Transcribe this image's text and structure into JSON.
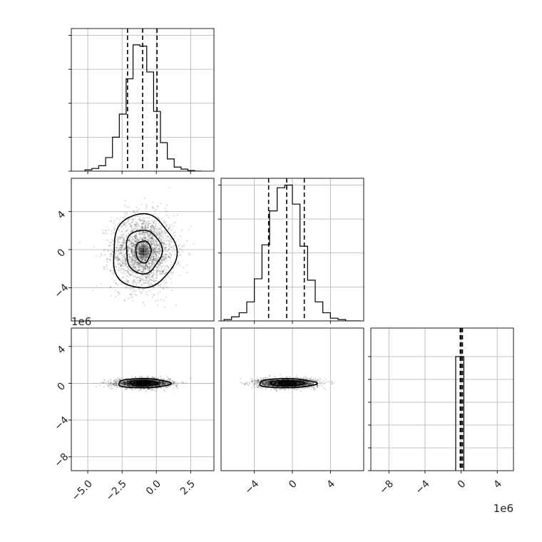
{
  "chart_data": {
    "type": "corner",
    "parameters": 3,
    "panels": [
      {
        "id": "hist-p0",
        "type": "histogram",
        "parameter": 0,
        "x_ticks": [
          "−5.0",
          "−2.5",
          "0.0",
          "2.5"
        ],
        "x_tick_values": [
          -5,
          -2.5,
          0,
          2.5
        ],
        "xlim": [
          -6.2,
          4.2
        ],
        "ylim": [
          0,
          1.05
        ],
        "bin_edges": [
          -5.2,
          -4.7,
          -4.2,
          -3.7,
          -3.2,
          -2.7,
          -2.2,
          -1.7,
          -1.2,
          -0.7,
          -0.2,
          0.3,
          0.8,
          1.3,
          1.8,
          2.3,
          2.8,
          3.3
        ],
        "counts": [
          0.01,
          0.02,
          0.04,
          0.1,
          0.25,
          0.42,
          0.68,
          0.93,
          0.92,
          0.73,
          0.44,
          0.21,
          0.09,
          0.03,
          0.015,
          0.005,
          0.0
        ],
        "quantiles": [
          -2.1,
          -1.0,
          0.05
        ],
        "grid": true
      },
      {
        "id": "scatter-p0-p1",
        "type": "contour",
        "x_param": 0,
        "y_param": 1,
        "xlim": [
          -6.2,
          4.2
        ],
        "ylim": [
          -7.5,
          7.5
        ],
        "y_ticks": [
          "−4",
          "0",
          "4"
        ],
        "y_tick_values": [
          -4,
          0,
          4
        ],
        "y_offset_label": "1e6",
        "center": [
          -0.95,
          -0.2
        ],
        "contour_radii": [
          [
            0.55,
            1.15
          ],
          [
            1.3,
            2.3
          ],
          [
            2.3,
            3.9
          ]
        ],
        "grid": true
      },
      {
        "id": "hist-p1",
        "type": "histogram",
        "parameter": 1,
        "x_ticks": [
          "−4",
          "0",
          "4"
        ],
        "x_tick_values": [
          -4,
          0,
          4
        ],
        "xlim": [
          -7.5,
          7.5
        ],
        "ylim": [
          0,
          1.05
        ],
        "bin_edges": [
          -7.2,
          -6.4,
          -5.6,
          -4.8,
          -4.0,
          -3.2,
          -2.4,
          -1.6,
          -0.8,
          0.0,
          0.8,
          1.6,
          2.4,
          3.2,
          4.0,
          4.8,
          5.6,
          6.4,
          7.2
        ],
        "counts": [
          0.01,
          0.03,
          0.06,
          0.14,
          0.31,
          0.56,
          0.81,
          0.98,
          1.0,
          0.86,
          0.55,
          0.3,
          0.14,
          0.06,
          0.02,
          0.01,
          0.0,
          0.0
        ],
        "quantiles": [
          -2.5,
          -0.6,
          1.25
        ],
        "grid": true
      },
      {
        "id": "scatter-p0-p2",
        "type": "contour",
        "x_param": 0,
        "y_param": 2,
        "xlim": [
          -6.2,
          4.2
        ],
        "ylim": [
          -9.5,
          6.0
        ],
        "y_ticks": [
          "−8",
          "−4",
          "0",
          "4"
        ],
        "y_tick_values": [
          -8,
          -4,
          0,
          4
        ],
        "x_ticks": [
          "−5.0",
          "−2.5",
          "0.0",
          "2.5"
        ],
        "x_tick_values": [
          -5,
          -2.5,
          0,
          2.5
        ],
        "center": [
          -0.95,
          0.0
        ],
        "contour_radii": [
          [
            0.5,
            0.16
          ],
          [
            1.0,
            0.3
          ],
          [
            1.9,
            0.5
          ]
        ],
        "grid": true
      },
      {
        "id": "scatter-p1-p2",
        "type": "contour",
        "x_param": 1,
        "y_param": 2,
        "xlim": [
          -7.5,
          7.5
        ],
        "ylim": [
          -9.5,
          6.0
        ],
        "x_ticks": [
          "−4",
          "0",
          "4"
        ],
        "x_tick_values": [
          -4,
          0,
          4
        ],
        "center": [
          -0.6,
          0.0
        ],
        "contour_radii": [
          [
            0.9,
            0.16
          ],
          [
            1.8,
            0.3
          ],
          [
            3.0,
            0.5
          ]
        ],
        "grid": true
      },
      {
        "id": "hist-p2",
        "type": "histogram",
        "parameter": 2,
        "x_ticks": [
          "−8",
          "−4",
          "0",
          "4"
        ],
        "x_tick_values": [
          -8,
          -4,
          0,
          4
        ],
        "x_offset_label": "1e6",
        "xlim": [
          -10.0,
          5.8
        ],
        "ylim": [
          0,
          1.25
        ],
        "bin_edges": [
          -0.6,
          0.3
        ],
        "counts": [
          1.0
        ],
        "quantiles": [
          -0.1,
          0.0,
          0.15
        ],
        "grid": true
      }
    ]
  }
}
